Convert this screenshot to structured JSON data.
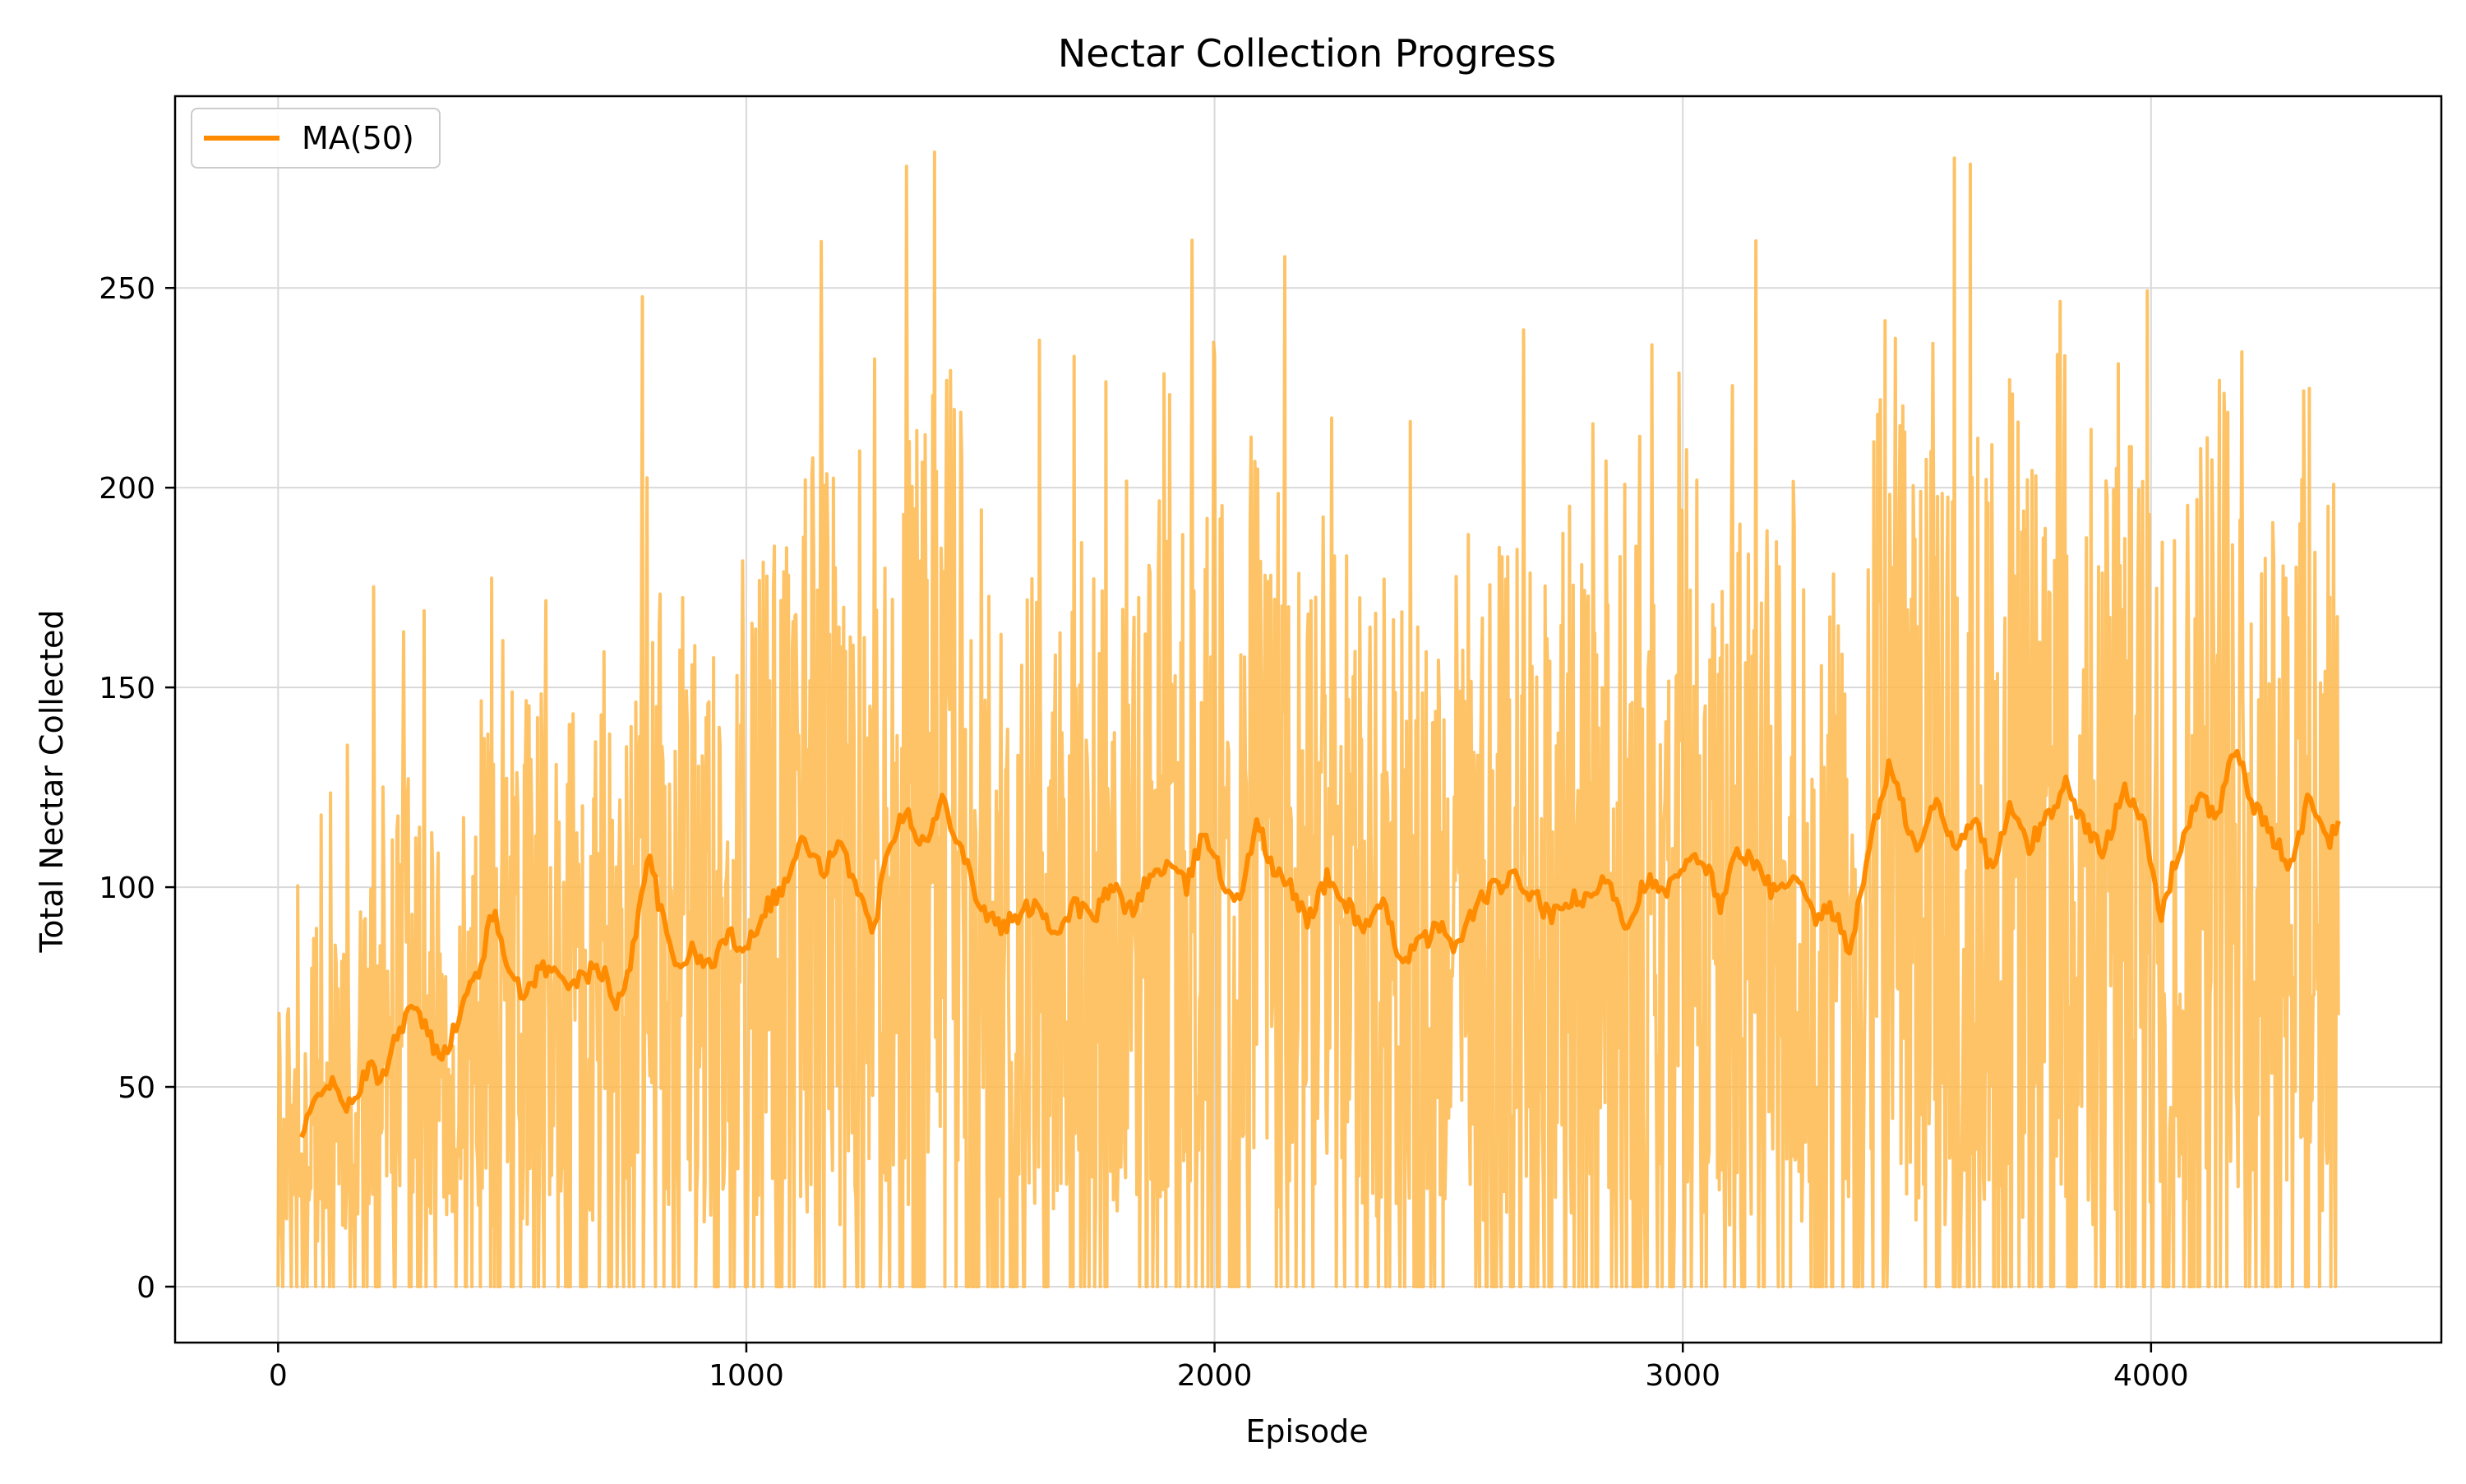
{
  "chart_data": {
    "type": "line",
    "title": "Nectar Collection Progress",
    "xlabel": "Episode",
    "ylabel": "Total Nectar Collected",
    "xlim": [
      -220,
      4620
    ],
    "ylim": [
      -14,
      298
    ],
    "xticks": [
      0,
      1000,
      2000,
      3000,
      4000
    ],
    "xtick_labels": [
      "0",
      "1000",
      "2000",
      "3000",
      "4000"
    ],
    "yticks": [
      0,
      50,
      100,
      150,
      200,
      250
    ],
    "ytick_labels": [
      "0",
      "50",
      "100",
      "150",
      "200",
      "250"
    ],
    "grid": true,
    "legend": {
      "placement": "upper-left",
      "entries": [
        "MA(50)"
      ]
    },
    "colors": {
      "raw": "#fdb94b",
      "ma": "#ff8c00",
      "grid": "#d9d9d9"
    },
    "episodes": 4400,
    "series": [
      {
        "name": "MA(50)",
        "role": "moving-average",
        "x": [
          50,
          75,
          100,
          130,
          160,
          190,
          220,
          250,
          280,
          310,
          340,
          370,
          400,
          430,
          460,
          490,
          520,
          560,
          600,
          640,
          680,
          700,
          720,
          760,
          790,
          820,
          850,
          880,
          920,
          960,
          1000,
          1040,
          1080,
          1120,
          1160,
          1200,
          1240,
          1270,
          1300,
          1340,
          1380,
          1420,
          1460,
          1500,
          1540,
          1580,
          1620,
          1660,
          1700,
          1740,
          1780,
          1820,
          1860,
          1900,
          1940,
          1980,
          2020,
          2060,
          2090,
          2120,
          2160,
          2200,
          2240,
          2280,
          2320,
          2360,
          2400,
          2440,
          2480,
          2520,
          2560,
          2600,
          2640,
          2680,
          2720,
          2760,
          2800,
          2840,
          2880,
          2920,
          2960,
          3000,
          3040,
          3080,
          3120,
          3160,
          3200,
          3240,
          3280,
          3320,
          3360,
          3400,
          3440,
          3470,
          3500,
          3540,
          3580,
          3620,
          3660,
          3700,
          3740,
          3780,
          3820,
          3860,
          3900,
          3940,
          3980,
          4020,
          4060,
          4100,
          4140,
          4180,
          4220,
          4260,
          4300,
          4340,
          4380,
          4400
        ],
        "values": [
          37,
          45,
          52,
          48,
          44,
          55,
          52,
          62,
          70,
          66,
          58,
          62,
          72,
          80,
          94,
          82,
          72,
          80,
          78,
          76,
          80,
          78,
          68,
          85,
          110,
          92,
          80,
          84,
          80,
          88,
          85,
          95,
          100,
          112,
          104,
          110,
          100,
          87,
          110,
          120,
          110,
          122,
          110,
          95,
          90,
          92,
          97,
          88,
          96,
          92,
          100,
          94,
          102,
          106,
          100,
          115,
          100,
          98,
          118,
          105,
          100,
          92,
          102,
          96,
          90,
          95,
          82,
          86,
          90,
          85,
          96,
          100,
          102,
          98,
          92,
          97,
          96,
          103,
          90,
          102,
          98,
          104,
          108,
          96,
          110,
          104,
          98,
          102,
          92,
          94,
          84,
          112,
          130,
          120,
          108,
          122,
          110,
          118,
          104,
          120,
          110,
          118,
          126,
          115,
          108,
          126,
          118,
          92,
          110,
          122,
          118,
          135,
          120,
          112,
          105,
          124,
          110,
          118
        ]
      }
    ]
  }
}
